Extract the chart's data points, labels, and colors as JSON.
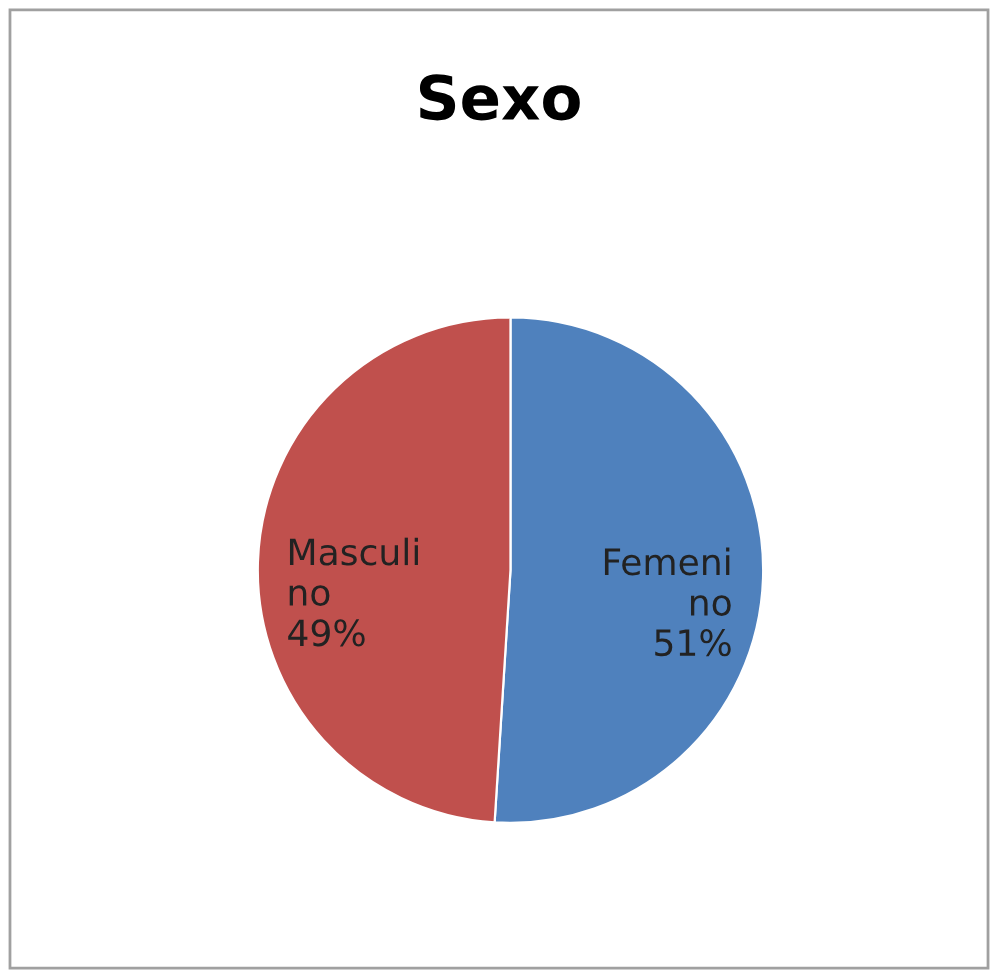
{
  "chart_data": {
    "type": "pie",
    "title": "Sexo",
    "categories": [
      "Femeni\nno",
      "Masculi\nno"
    ],
    "values": [
      51,
      49
    ],
    "colors": [
      "#4f81bd",
      "#c0504d"
    ],
    "value_labels": [
      "51%",
      "49%"
    ],
    "legend": false
  }
}
